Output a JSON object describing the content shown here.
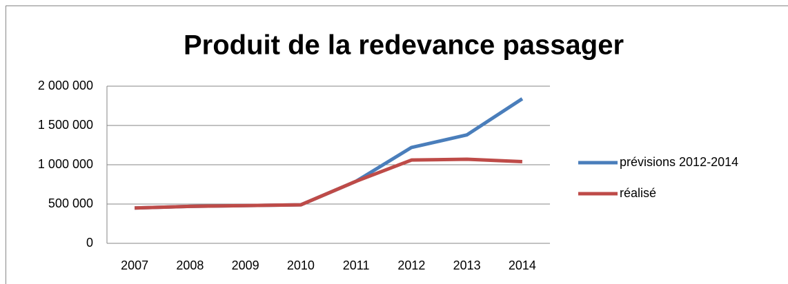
{
  "chart_data": {
    "type": "line",
    "title": "Produit de la redevance passager",
    "categories": [
      "2007",
      "2008",
      "2009",
      "2010",
      "2011",
      "2012",
      "2013",
      "2014"
    ],
    "series": [
      {
        "name": "prévisions 2012-2014",
        "color": "#4a7ebb",
        "values": [
          450000,
          470000,
          480000,
          490000,
          790000,
          1220000,
          1380000,
          1840000
        ]
      },
      {
        "name": "réalisé",
        "color": "#be4b48",
        "values": [
          450000,
          470000,
          480000,
          490000,
          790000,
          1060000,
          1070000,
          1040000
        ]
      }
    ],
    "ylim": [
      0,
      2000000
    ],
    "yticks": [
      0,
      {
        "value": 500000,
        "label": "500 000"
      },
      {
        "value": 1000000,
        "label": "1 000 000"
      },
      {
        "value": 1500000,
        "label": "1 500 000"
      },
      {
        "value": 2000000,
        "label": "2 000 000"
      }
    ],
    "grid": true,
    "legend": "right"
  }
}
